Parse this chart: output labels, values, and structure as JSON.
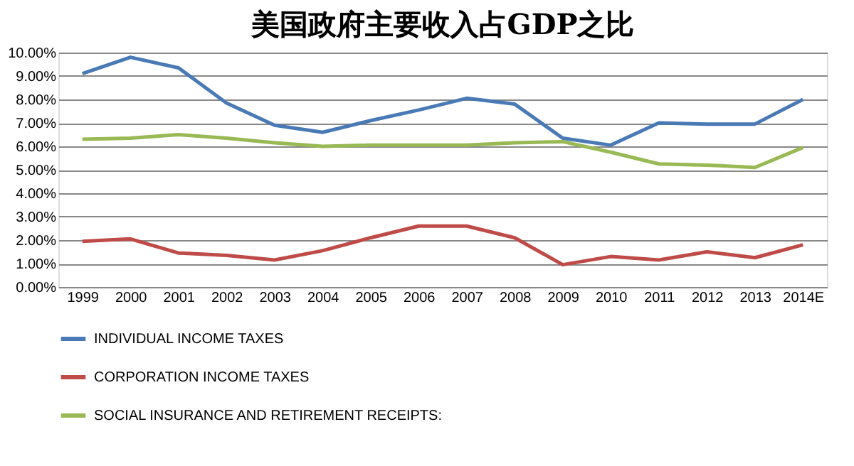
{
  "chart_data": {
    "type": "line",
    "title": "美国政府主要收入占GDP之比",
    "categories": [
      "1999",
      "2000",
      "2001",
      "2002",
      "2003",
      "2004",
      "2005",
      "2006",
      "2007",
      "2008",
      "2009",
      "2010",
      "2011",
      "2012",
      "2013",
      "2014E"
    ],
    "series": [
      {
        "name": "INDIVIDUAL INCOME TAXES",
        "color": "#4a7ab5",
        "values": [
          9.1,
          9.8,
          9.35,
          7.85,
          6.9,
          6.6,
          7.1,
          7.55,
          8.05,
          7.8,
          6.35,
          6.05,
          7.0,
          6.95,
          6.95,
          8.0
        ]
      },
      {
        "name": "CORPORATION INCOME TAXES",
        "color": "#be4b48",
        "values": [
          1.95,
          2.05,
          1.45,
          1.35,
          1.15,
          1.55,
          2.1,
          2.6,
          2.6,
          2.1,
          0.95,
          1.3,
          1.15,
          1.5,
          1.25,
          1.8
        ]
      },
      {
        "name": "SOCIAL INSURANCE AND RETIREMENT RECEIPTS:",
        "color": "#98b954",
        "values": [
          6.3,
          6.35,
          6.5,
          6.35,
          6.15,
          6.0,
          6.05,
          6.05,
          6.05,
          6.15,
          6.2,
          5.75,
          5.25,
          5.2,
          5.1,
          5.95
        ]
      }
    ],
    "ylim": [
      0,
      10
    ],
    "yticks": [
      {
        "value": 0,
        "label": "0.00%"
      },
      {
        "value": 1,
        "label": "1.00%"
      },
      {
        "value": 2,
        "label": "2.00%"
      },
      {
        "value": 3,
        "label": "3.00%"
      },
      {
        "value": 4,
        "label": "4.00%"
      },
      {
        "value": 5,
        "label": "5.00%"
      },
      {
        "value": 6,
        "label": "6.00%"
      },
      {
        "value": 7,
        "label": "7.00%"
      },
      {
        "value": 8,
        "label": "8.00%"
      },
      {
        "value": 9,
        "label": "9.00%"
      },
      {
        "value": 10,
        "label": "10.00%"
      }
    ],
    "grid": "y",
    "legend": "bottom",
    "marker": "none",
    "line_style": "solid"
  }
}
